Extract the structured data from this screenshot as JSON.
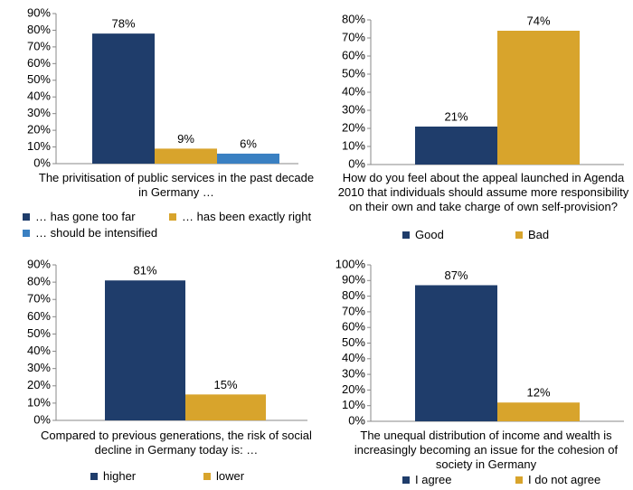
{
  "chart_data": [
    {
      "type": "bar",
      "xlabel": "The privitisation of public services in the past decade in Germany …",
      "ylim": [
        0,
        90
      ],
      "yticks": [
        {
          "value": 0,
          "label": "0%"
        },
        {
          "value": 10,
          "label": "10%"
        },
        {
          "value": 20,
          "label": "20%"
        },
        {
          "value": 30,
          "label": "30%"
        },
        {
          "value": 40,
          "label": "40%"
        },
        {
          "value": 50,
          "label": "50%"
        },
        {
          "value": 60,
          "label": "60%"
        },
        {
          "value": 70,
          "label": "70%"
        },
        {
          "value": 80,
          "label": "80%"
        },
        {
          "value": 90,
          "label": "90%"
        }
      ],
      "series": [
        {
          "name": "… has gone too far",
          "color": "#1f3d6b",
          "values": [
            78
          ],
          "value_labels": [
            "78%"
          ]
        },
        {
          "name": "… has been exactly right",
          "color": "#d8a42c",
          "values": [
            9
          ],
          "value_labels": [
            "9%"
          ]
        },
        {
          "name": "… should be intensified",
          "color": "#3a80c2",
          "values": [
            6
          ],
          "value_labels": [
            "6%"
          ]
        }
      ]
    },
    {
      "type": "bar",
      "xlabel": "How do you feel about the appeal launched in Agenda 2010 that individuals should assume more responsibility on their own and take charge of own self-provision?",
      "ylim": [
        0,
        80
      ],
      "yticks": [
        {
          "value": 0,
          "label": "0%"
        },
        {
          "value": 10,
          "label": "10%"
        },
        {
          "value": 20,
          "label": "20%"
        },
        {
          "value": 30,
          "label": "30%"
        },
        {
          "value": 40,
          "label": "40%"
        },
        {
          "value": 50,
          "label": "50%"
        },
        {
          "value": 60,
          "label": "60%"
        },
        {
          "value": 70,
          "label": "70%"
        },
        {
          "value": 80,
          "label": "80%"
        }
      ],
      "series": [
        {
          "name": "Good",
          "color": "#1f3d6b",
          "values": [
            21
          ],
          "value_labels": [
            "21%"
          ]
        },
        {
          "name": "Bad",
          "color": "#d8a42c",
          "values": [
            74
          ],
          "value_labels": [
            "74%"
          ]
        }
      ]
    },
    {
      "type": "bar",
      "xlabel": "Compared to previous generations, the risk of social decline in Germany today is: …",
      "ylim": [
        0,
        90
      ],
      "yticks": [
        {
          "value": 0,
          "label": "0%"
        },
        {
          "value": 10,
          "label": "10%"
        },
        {
          "value": 20,
          "label": "20%"
        },
        {
          "value": 30,
          "label": "30%"
        },
        {
          "value": 40,
          "label": "40%"
        },
        {
          "value": 50,
          "label": "50%"
        },
        {
          "value": 60,
          "label": "60%"
        },
        {
          "value": 70,
          "label": "70%"
        },
        {
          "value": 80,
          "label": "80%"
        },
        {
          "value": 90,
          "label": "90%"
        }
      ],
      "series": [
        {
          "name": "higher",
          "color": "#1f3d6b",
          "values": [
            81
          ],
          "value_labels": [
            "81%"
          ]
        },
        {
          "name": "lower",
          "color": "#d8a42c",
          "values": [
            15
          ],
          "value_labels": [
            "15%"
          ]
        }
      ]
    },
    {
      "type": "bar",
      "xlabel": "The unequal distribution of income and wealth is increasingly becoming an issue for the cohesion of society in Germany",
      "ylim": [
        0,
        100
      ],
      "yticks": [
        {
          "value": 0,
          "label": "0%"
        },
        {
          "value": 10,
          "label": "10%"
        },
        {
          "value": 20,
          "label": "20%"
        },
        {
          "value": 30,
          "label": "30%"
        },
        {
          "value": 40,
          "label": "40%"
        },
        {
          "value": 50,
          "label": "50%"
        },
        {
          "value": 60,
          "label": "60%"
        },
        {
          "value": 70,
          "label": "70%"
        },
        {
          "value": 80,
          "label": "80%"
        },
        {
          "value": 90,
          "label": "90%"
        },
        {
          "value": 100,
          "label": "100%"
        }
      ],
      "series": [
        {
          "name": "I agree",
          "color": "#1f3d6b",
          "values": [
            87
          ],
          "value_labels": [
            "87%"
          ]
        },
        {
          "name": "I do not agree",
          "color": "#d8a42c",
          "values": [
            12
          ],
          "value_labels": [
            "12%"
          ]
        }
      ]
    }
  ]
}
